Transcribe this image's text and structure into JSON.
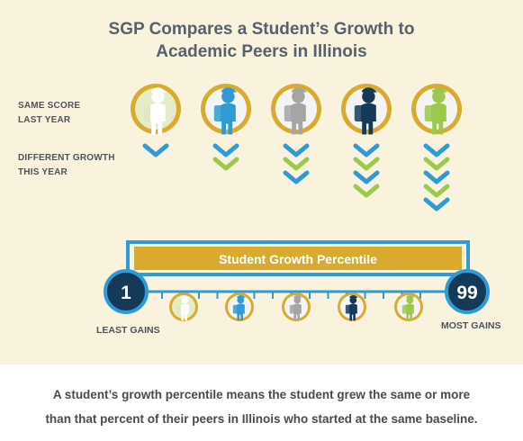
{
  "title_line1": "SGP Compares a Student’s Growth to",
  "title_line2": "Academic Peers in Illinois",
  "same_score_line1": "SAME SCORE",
  "same_score_line2": "LAST YEAR",
  "diff_growth_line1": "DIFFERENT GROWTH",
  "diff_growth_line2": "THIS YEAR",
  "bar_label": "Student Growth Percentile",
  "min_value": "1",
  "max_value": "99",
  "min_label": "LEAST GAINS",
  "max_label": "MOST GAINS",
  "caption_line1": "A student’s growth percentile means the student grew the same or more",
  "caption_line2": "than that percent of their peers in Illinois who started at the same baseline.",
  "colors": {
    "panel": "#f9f2dc",
    "gold": "#d8ab2e",
    "navy": "#153a57",
    "blue": "#2e9bd6",
    "green": "#9bc94b",
    "gray": "#a5a5a5",
    "pale": "#e4ecc8"
  },
  "students": [
    {
      "figure_color": "pale",
      "chevrons": [
        "blue"
      ]
    },
    {
      "figure_color": "blue",
      "chevrons": [
        "blue",
        "green"
      ]
    },
    {
      "figure_color": "gray",
      "chevrons": [
        "blue",
        "green",
        "blue"
      ]
    },
    {
      "figure_color": "navy",
      "chevrons": [
        "blue",
        "green",
        "blue",
        "green"
      ]
    },
    {
      "figure_color": "green",
      "chevrons": [
        "blue",
        "green",
        "blue",
        "green",
        "blue"
      ]
    }
  ],
  "scale_students": [
    "pale",
    "blue",
    "gray",
    "navy",
    "green"
  ]
}
